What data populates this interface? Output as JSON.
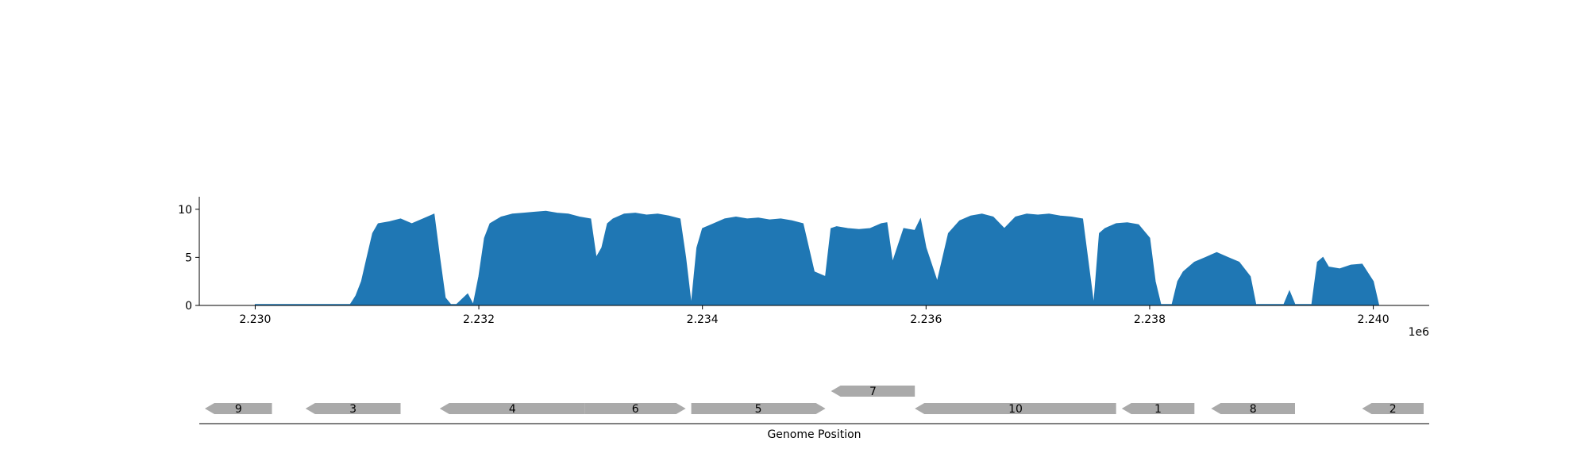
{
  "chart_data": [
    {
      "type": "area",
      "title": "",
      "xlabel": "",
      "ylabel": "",
      "x_offset_label": "1e6",
      "xlim": [
        2229500,
        2240500
      ],
      "ylim": [
        0,
        11.3
      ],
      "xticks": [
        {
          "value": 2230000,
          "label": "2.230"
        },
        {
          "value": 2232000,
          "label": "2.232"
        },
        {
          "value": 2234000,
          "label": "2.234"
        },
        {
          "value": 2236000,
          "label": "2.236"
        },
        {
          "value": 2238000,
          "label": "2.238"
        },
        {
          "value": 2240000,
          "label": "2.240"
        }
      ],
      "yticks": [
        {
          "value": 0,
          "label": "0"
        },
        {
          "value": 5,
          "label": "5"
        },
        {
          "value": 10,
          "label": "10"
        }
      ],
      "color": "#1f77b4",
      "grid": false,
      "legend": "none",
      "series": [
        {
          "x": [
            2230000,
            2230850,
            2230900,
            2230950,
            2231000,
            2231050,
            2231100,
            2231200,
            2231300,
            2231400,
            2231500,
            2231600,
            2231650,
            2231700,
            2231750,
            2231800,
            2231900,
            2231950,
            2232000,
            2232050,
            2232100,
            2232200,
            2232300,
            2232400,
            2232500,
            2232600,
            2232700,
            2232800,
            2232900,
            2233000,
            2233050,
            2233100,
            2233150,
            2233200,
            2233300,
            2233400,
            2233500,
            2233600,
            2233700,
            2233800,
            2233850,
            2233900,
            2233950,
            2234000,
            2234100,
            2234200,
            2234300,
            2234400,
            2234500,
            2234600,
            2234700,
            2234800,
            2234900,
            2235000,
            2235100,
            2235150,
            2235200,
            2235300,
            2235400,
            2235500,
            2235600,
            2235650,
            2235700,
            2235800,
            2235900,
            2235950,
            2236000,
            2236100,
            2236200,
            2236300,
            2236400,
            2236500,
            2236600,
            2236700,
            2236800,
            2236900,
            2237000,
            2237100,
            2237200,
            2237300,
            2237400,
            2237500,
            2237550,
            2237600,
            2237700,
            2237800,
            2237900,
            2238000,
            2238050,
            2238100,
            2238150,
            2238200,
            2238250,
            2238300,
            2238400,
            2238500,
            2238600,
            2238700,
            2238800,
            2238900,
            2238950,
            2239000,
            2239100,
            2239200,
            2239250,
            2239300,
            2239400,
            2239450,
            2239500,
            2239550,
            2239600,
            2239700,
            2239800,
            2239900,
            2240000,
            2240050
          ],
          "values": [
            0.1,
            0.1,
            1.0,
            2.5,
            5.0,
            7.5,
            8.5,
            8.7,
            9.0,
            8.5,
            9.0,
            9.5,
            5.0,
            0.8,
            0.1,
            0.1,
            1.2,
            0.1,
            3.0,
            7.0,
            8.5,
            9.2,
            9.5,
            9.6,
            9.7,
            9.8,
            9.6,
            9.5,
            9.2,
            9.0,
            5.0,
            6.0,
            8.5,
            9.0,
            9.5,
            9.6,
            9.4,
            9.5,
            9.3,
            9.0,
            5.0,
            0.1,
            6.0,
            8.0,
            8.5,
            9.0,
            9.2,
            9.0,
            9.1,
            8.9,
            9.0,
            8.8,
            8.5,
            3.5,
            3.0,
            8.0,
            8.2,
            8.0,
            7.9,
            8.0,
            8.5,
            8.6,
            4.5,
            8.0,
            7.8,
            9.0,
            6.0,
            2.5,
            7.5,
            8.8,
            9.3,
            9.5,
            9.2,
            8.0,
            9.2,
            9.5,
            9.4,
            9.5,
            9.3,
            9.2,
            9.0,
            0.1,
            7.5,
            8.0,
            8.5,
            8.6,
            8.4,
            7.0,
            2.5,
            0.1,
            0.1,
            0.1,
            2.5,
            3.5,
            4.5,
            5.0,
            5.5,
            5.0,
            4.5,
            3.0,
            0.1,
            0.1,
            0.1,
            0.1,
            1.5,
            0.1,
            0.1,
            0.1,
            4.5,
            5.0,
            4.0,
            3.8,
            4.2,
            4.3,
            2.5,
            0.0
          ]
        }
      ]
    },
    {
      "type": "gene_map",
      "xlabel": "Genome Position",
      "xlim": [
        2229500,
        2240500
      ],
      "arrow_color": "#aaaaaa",
      "genes": [
        {
          "label": "9",
          "start": 2229550,
          "end": 2230150,
          "strand": "-",
          "row": 0
        },
        {
          "label": "3",
          "start": 2230450,
          "end": 2231300,
          "strand": "-",
          "row": 0
        },
        {
          "label": "4",
          "start": 2231650,
          "end": 2232950,
          "strand": "-",
          "row": 0
        },
        {
          "label": "6",
          "start": 2232950,
          "end": 2233850,
          "strand": "+",
          "row": 0
        },
        {
          "label": "5",
          "start": 2233900,
          "end": 2235100,
          "strand": "+",
          "row": 0
        },
        {
          "label": "7",
          "start": 2235150,
          "end": 2235900,
          "strand": "-",
          "row": 1
        },
        {
          "label": "10",
          "start": 2235900,
          "end": 2237700,
          "strand": "-",
          "row": 0
        },
        {
          "label": "1",
          "start": 2237750,
          "end": 2238400,
          "strand": "-",
          "row": 0
        },
        {
          "label": "8",
          "start": 2238550,
          "end": 2239300,
          "strand": "-",
          "row": 0
        },
        {
          "label": "2",
          "start": 2239900,
          "end": 2240450,
          "strand": "-",
          "row": 0
        }
      ]
    }
  ]
}
